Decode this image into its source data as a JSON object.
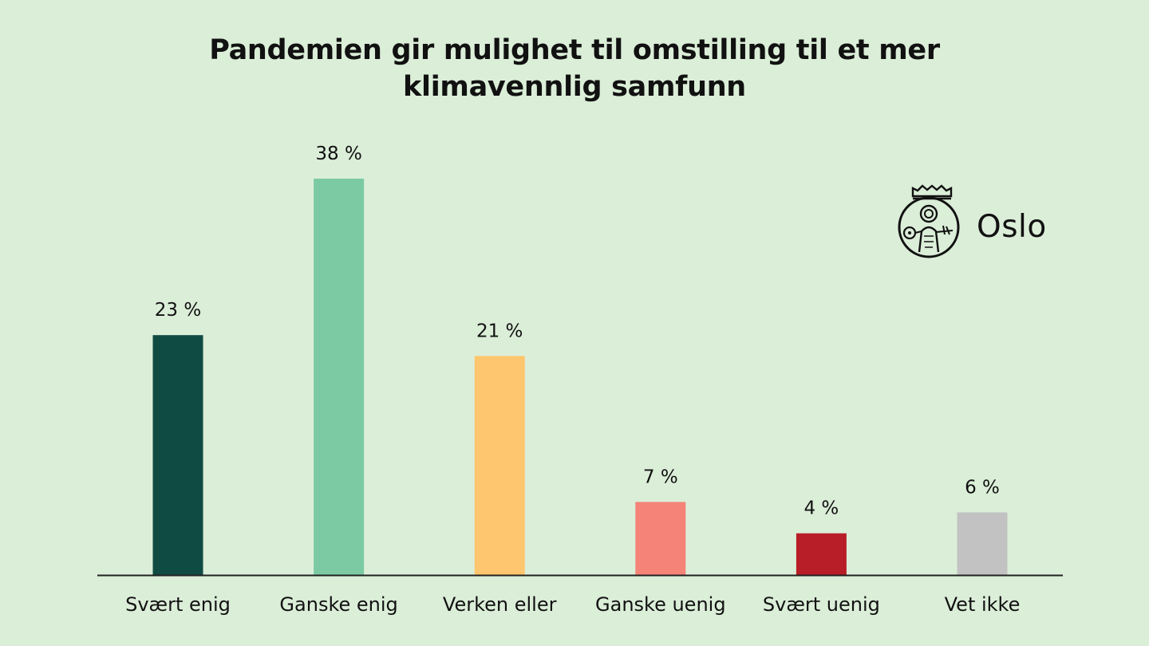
{
  "chart_data": {
    "type": "bar",
    "title": "Pandemien gir mulighet til omstilling til et mer klimavennlig samfunn",
    "categories": [
      "Svært enig",
      "Ganske enig",
      "Verken eller",
      "Ganske uenig",
      "Svært uenig",
      "Vet ikke"
    ],
    "values": [
      23,
      38,
      21,
      7,
      4,
      6
    ],
    "value_labels": [
      "23 %",
      "38 %",
      "21 %",
      "7 %",
      "4 %",
      "6 %"
    ],
    "colors": [
      "#0f4b42",
      "#7bcaa3",
      "#fec66e",
      "#f58378",
      "#b81e27",
      "#c2c2c2"
    ],
    "xlabel": "",
    "ylabel": "",
    "ylim": [
      0,
      38
    ],
    "grid": false,
    "legend": "none"
  },
  "branding": {
    "name": "Oslo",
    "icon": "oslo-city-seal-icon"
  },
  "colors": {
    "background": "#dbeed8",
    "axis": "#222222",
    "text": "#111111"
  }
}
